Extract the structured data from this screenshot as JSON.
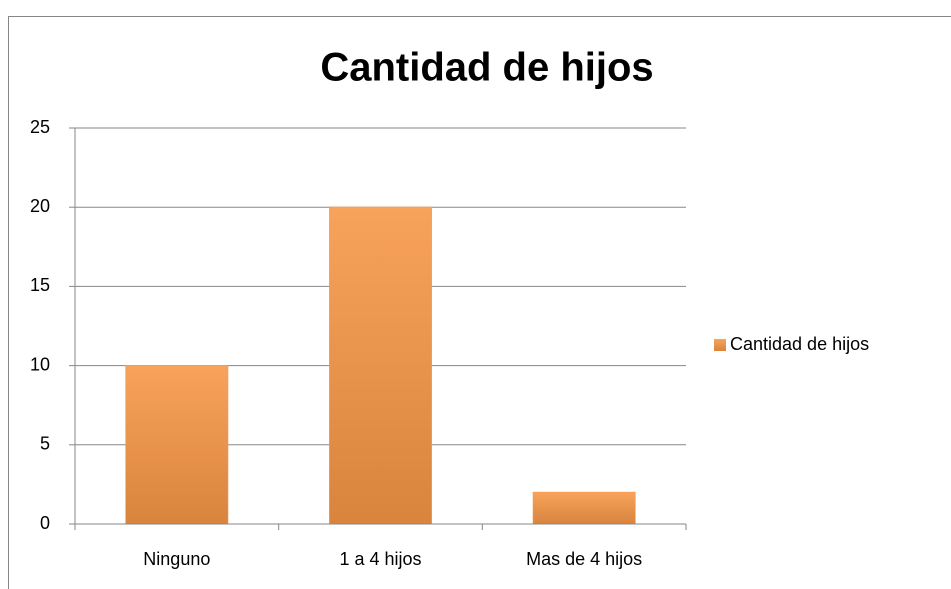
{
  "chart_data": {
    "type": "bar",
    "title": "Cantidad de hijos",
    "categories": [
      "Ninguno",
      "1 a 4 hijos",
      "Mas de 4 hijos"
    ],
    "series": [
      {
        "name": "Cantidad de hijos",
        "color": "#f79646",
        "values": [
          10,
          20,
          2
        ]
      }
    ],
    "ylim": [
      0,
      25
    ],
    "yticks": [
      0,
      5,
      10,
      15,
      20,
      25
    ],
    "grid": true,
    "legend": "right"
  }
}
